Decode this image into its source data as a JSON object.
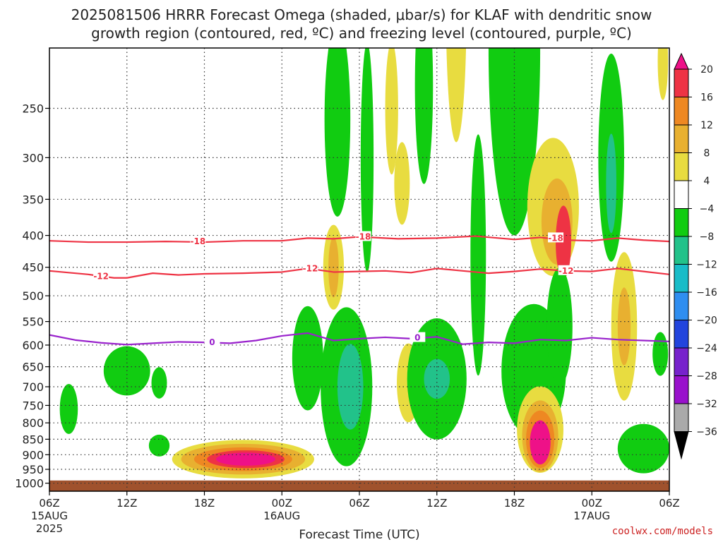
{
  "title_line1": "2025081506 HRRR Forecast Omega (shaded, μbar/s) for KLAF with dendritic snow",
  "title_line2": "growth region (contoured, red, ºC) and freezing level (contoured, purple, ºC)",
  "credit": "coolwx.com/models",
  "chart_data": {
    "type": "time-height cross section",
    "xlabel": "Forecast Time (UTC)",
    "x_ticks": [
      {
        "hour": 0,
        "label": "06Z",
        "sub": "15AUG",
        "sub2": "2025"
      },
      {
        "hour": 6,
        "label": "12Z",
        "sub": "",
        "sub2": ""
      },
      {
        "hour": 12,
        "label": "18Z",
        "sub": "",
        "sub2": ""
      },
      {
        "hour": 18,
        "label": "00Z",
        "sub": "16AUG",
        "sub2": ""
      },
      {
        "hour": 24,
        "label": "06Z",
        "sub": "",
        "sub2": ""
      },
      {
        "hour": 30,
        "label": "12Z",
        "sub": "",
        "sub2": ""
      },
      {
        "hour": 36,
        "label": "18Z",
        "sub": "",
        "sub2": ""
      },
      {
        "hour": 42,
        "label": "00Z",
        "sub": "17AUG",
        "sub2": ""
      },
      {
        "hour": 48,
        "label": "06Z",
        "sub": "",
        "sub2": ""
      }
    ],
    "xlim": [
      0,
      48
    ],
    "y_ticks": [
      250,
      300,
      350,
      400,
      450,
      500,
      550,
      600,
      650,
      700,
      750,
      800,
      850,
      900,
      950,
      1000
    ],
    "ylim": [
      1000,
      200
    ],
    "ground_level_hpa": 990,
    "grid": true,
    "colorbar": {
      "labels": [
        "20",
        "16",
        "12",
        "8",
        "4",
        "−4",
        "−8",
        "−12",
        "−16",
        "−20",
        "−24",
        "−28",
        "−32",
        "−36"
      ],
      "bands": [
        {
          "range": "16 to 20",
          "color": "#ee3344"
        },
        {
          "range": "12 to 16",
          "color": "#ee8822"
        },
        {
          "range": "8 to 12",
          "color": "#e8b030"
        },
        {
          "range": "4 to 8",
          "color": "#e8dc40"
        },
        {
          "range": "-4 to 4",
          "color": "#ffffff"
        },
        {
          "range": "-8 to -4",
          "color": "#11cc11"
        },
        {
          "range": "-12 to -8",
          "color": "#22c28a"
        },
        {
          "range": "-16 to -12",
          "color": "#18bcc8"
        },
        {
          "range": "-20 to -16",
          "color": "#2f8ef0"
        },
        {
          "range": "-24 to -20",
          "color": "#2244dd"
        },
        {
          "range": "-28 to -24",
          "color": "#7722cc"
        },
        {
          "range": "-32 to -28",
          "color": "#9911cc"
        },
        {
          "range": "-36 to -32",
          "color": "#aaaaaa"
        }
      ],
      "over_color": "#ee1188",
      "under_color": "#000000"
    },
    "omega_areas": [
      {
        "x": 1.5,
        "p": 760,
        "rx": 0.7,
        "rp": 70,
        "level": -6
      },
      {
        "x": 6.0,
        "p": 660,
        "rx": 1.8,
        "rp": 60,
        "level": -6
      },
      {
        "x": 8.5,
        "p": 690,
        "rx": 0.6,
        "rp": 40,
        "level": -6
      },
      {
        "x": 8.5,
        "p": 870,
        "rx": 0.8,
        "rp": 35,
        "level": -6
      },
      {
        "x": 15.0,
        "p": 915,
        "rx": 5.5,
        "rp": 65,
        "level": 6
      },
      {
        "x": 15.0,
        "p": 915,
        "rx": 4.8,
        "rp": 52,
        "level": 10
      },
      {
        "x": 15.0,
        "p": 915,
        "rx": 3.8,
        "rp": 40,
        "level": 14
      },
      {
        "x": 15.2,
        "p": 915,
        "rx": 3.0,
        "rp": 30,
        "level": 18
      },
      {
        "x": 15.2,
        "p": 915,
        "rx": 2.3,
        "rp": 22,
        "level": 22
      },
      {
        "x": 20.0,
        "p": 630,
        "rx": 1.2,
        "rp": 120,
        "level": -6
      },
      {
        "x": 23.0,
        "p": 700,
        "rx": 2.0,
        "rp": 200,
        "level": -6
      },
      {
        "x": 23.3,
        "p": 700,
        "rx": 1.0,
        "rp": 110,
        "level": -10
      },
      {
        "x": 22.0,
        "p": 450,
        "rx": 0.8,
        "rp": 70,
        "level": 6
      },
      {
        "x": 22.0,
        "p": 450,
        "rx": 0.4,
        "rp": 50,
        "level": 10
      },
      {
        "x": 22.3,
        "p": 260,
        "rx": 1.0,
        "rp": 90,
        "level": -6
      },
      {
        "x": 24.6,
        "p": 300,
        "rx": 0.5,
        "rp": 120,
        "level": -6
      },
      {
        "x": 26.5,
        "p": 250,
        "rx": 0.5,
        "rp": 60,
        "level": 6
      },
      {
        "x": 29.0,
        "p": 230,
        "rx": 0.7,
        "rp": 80,
        "level": -6
      },
      {
        "x": 27.3,
        "p": 330,
        "rx": 0.6,
        "rp": 50,
        "level": 6
      },
      {
        "x": 27.8,
        "p": 690,
        "rx": 0.9,
        "rp": 100,
        "level": 6
      },
      {
        "x": 30.0,
        "p": 680,
        "rx": 2.3,
        "rp": 150,
        "level": -6
      },
      {
        "x": 30.0,
        "p": 680,
        "rx": 1.0,
        "rp": 50,
        "level": -10
      },
      {
        "x": 33.2,
        "p": 430,
        "rx": 0.6,
        "rp": 180,
        "level": -6
      },
      {
        "x": 31.5,
        "p": 170,
        "rx": 0.8,
        "rp": 80,
        "level": 6
      },
      {
        "x": 36.0,
        "p": 200,
        "rx": 2.0,
        "rp": 120,
        "level": -6
      },
      {
        "x": 39.0,
        "p": 360,
        "rx": 2.0,
        "rp": 90,
        "level": 6
      },
      {
        "x": 39.3,
        "p": 380,
        "rx": 1.2,
        "rp": 60,
        "level": 10
      },
      {
        "x": 39.8,
        "p": 410,
        "rx": 0.6,
        "rp": 55,
        "level": 18
      },
      {
        "x": 37.5,
        "p": 660,
        "rx": 2.5,
        "rp": 160,
        "level": -6
      },
      {
        "x": 38.0,
        "p": 820,
        "rx": 1.8,
        "rp": 130,
        "level": 6
      },
      {
        "x": 38.0,
        "p": 840,
        "rx": 1.4,
        "rp": 110,
        "level": 10
      },
      {
        "x": 38.0,
        "p": 850,
        "rx": 1.1,
        "rp": 90,
        "level": 14
      },
      {
        "x": 38.0,
        "p": 860,
        "rx": 0.8,
        "rp": 70,
        "level": 22
      },
      {
        "x": 39.5,
        "p": 560,
        "rx": 1.0,
        "rp": 120,
        "level": -6
      },
      {
        "x": 43.5,
        "p": 300,
        "rx": 1.0,
        "rp": 110,
        "level": -6
      },
      {
        "x": 43.5,
        "p": 330,
        "rx": 0.4,
        "rp": 60,
        "level": -10
      },
      {
        "x": 44.5,
        "p": 560,
        "rx": 1.0,
        "rp": 150,
        "level": 6
      },
      {
        "x": 44.5,
        "p": 560,
        "rx": 0.5,
        "rp": 80,
        "level": 10
      },
      {
        "x": 46.0,
        "p": 880,
        "rx": 2.0,
        "rp": 80,
        "level": -6
      },
      {
        "x": 47.3,
        "p": 620,
        "rx": 0.6,
        "rp": 50,
        "level": -6
      },
      {
        "x": 47.5,
        "p": 210,
        "rx": 0.4,
        "rp": 30,
        "level": 6
      }
    ],
    "contour_minus18": {
      "color": "#ee3344",
      "label": "-18",
      "points": [
        [
          0,
          408
        ],
        [
          3,
          410
        ],
        [
          6,
          410
        ],
        [
          9,
          409
        ],
        [
          12,
          410
        ],
        [
          15,
          408
        ],
        [
          18,
          408
        ],
        [
          20,
          404
        ],
        [
          22,
          405
        ],
        [
          24,
          402
        ],
        [
          27,
          405
        ],
        [
          30,
          404
        ],
        [
          33,
          401
        ],
        [
          36,
          406
        ],
        [
          38,
          403
        ],
        [
          40,
          407
        ],
        [
          42,
          408
        ],
        [
          44,
          404
        ],
        [
          46,
          407
        ],
        [
          48,
          409
        ]
      ]
    },
    "contour_minus12": {
      "color": "#ee3344",
      "label": "-12",
      "points": [
        [
          0,
          456
        ],
        [
          3,
          462
        ],
        [
          5,
          468
        ],
        [
          6,
          468
        ],
        [
          8,
          460
        ],
        [
          10,
          463
        ],
        [
          12,
          461
        ],
        [
          15,
          460
        ],
        [
          18,
          458
        ],
        [
          20,
          452
        ],
        [
          22,
          458
        ],
        [
          24,
          457
        ],
        [
          26,
          456
        ],
        [
          28,
          459
        ],
        [
          30,
          452
        ],
        [
          32,
          456
        ],
        [
          34,
          460
        ],
        [
          36,
          457
        ],
        [
          38,
          453
        ],
        [
          40,
          456
        ],
        [
          42,
          457
        ],
        [
          44,
          452
        ],
        [
          46,
          457
        ],
        [
          48,
          462
        ]
      ]
    },
    "contour_zero": {
      "color": "#9922cc",
      "label": "0",
      "points": [
        [
          0,
          578
        ],
        [
          2,
          589
        ],
        [
          4,
          595
        ],
        [
          6,
          599
        ],
        [
          8,
          596
        ],
        [
          10,
          593
        ],
        [
          12,
          594
        ],
        [
          14,
          596
        ],
        [
          16,
          590
        ],
        [
          18,
          580
        ],
        [
          20,
          574
        ],
        [
          22,
          590
        ],
        [
          24,
          586
        ],
        [
          26,
          583
        ],
        [
          28,
          586
        ],
        [
          30,
          582
        ],
        [
          32,
          598
        ],
        [
          34,
          594
        ],
        [
          36,
          596
        ],
        [
          38,
          588
        ],
        [
          40,
          590
        ],
        [
          42,
          584
        ],
        [
          44,
          588
        ],
        [
          46,
          590
        ],
        [
          48,
          592
        ]
      ]
    }
  }
}
